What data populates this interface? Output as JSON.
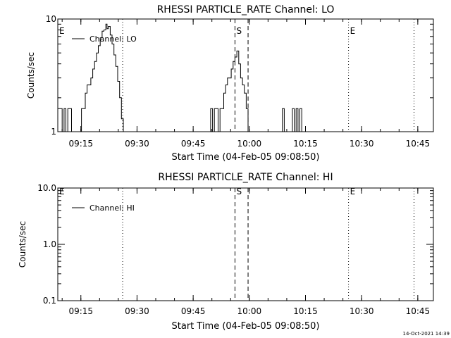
{
  "timestamp": "14-Oct-2021 14:39",
  "chart_data": [
    {
      "type": "line",
      "title": "RHESSI PARTICLE_RATE Channel: LO",
      "xlabel": "Start Time (04-Feb-05 09:08:50)",
      "ylabel": "Counts/sec",
      "yscale": "log",
      "xlim": [
        "09:08:50",
        "10:49:10"
      ],
      "ylim": [
        1,
        10
      ],
      "x_ticks": [
        "09:15",
        "09:30",
        "09:45",
        "10:00",
        "10:15",
        "10:30",
        "10:45"
      ],
      "y_ticks": [
        "1",
        "10"
      ],
      "legend": {
        "label": "Channel: LO",
        "placement": "top-left"
      },
      "markers": [
        {
          "label": "E",
          "time": "09:08:50",
          "style": "none"
        },
        {
          "label": "",
          "time": "09:26:10",
          "style": "dotted"
        },
        {
          "label": "S",
          "time": "09:56:10",
          "style": "dashed"
        },
        {
          "label": "",
          "time": "09:59:40",
          "style": "dashed"
        },
        {
          "label": "E",
          "time": "10:26:30",
          "style": "dotted"
        },
        {
          "label": "",
          "time": "10:44:00",
          "style": "dotted"
        }
      ],
      "series": [
        {
          "values": [
            [
              "09:08:50",
              1.6
            ],
            [
              "09:09:30",
              1.6
            ],
            [
              "09:10:00",
              1.0
            ],
            [
              "09:10:30",
              1.6
            ],
            [
              "09:11:00",
              1.0
            ],
            [
              "09:11:30",
              1.6
            ],
            [
              "09:12:00",
              1.6
            ],
            [
              "09:12:30",
              1.0
            ],
            [
              "09:14:40",
              1.0
            ],
            [
              "09:15:10",
              1.6
            ],
            [
              "09:15:40",
              1.6
            ],
            [
              "09:16:10",
              2.2
            ],
            [
              "09:16:40",
              2.6
            ],
            [
              "09:17:10",
              2.6
            ],
            [
              "09:17:40",
              3.0
            ],
            [
              "09:18:10",
              3.6
            ],
            [
              "09:18:40",
              4.2
            ],
            [
              "09:19:10",
              5.0
            ],
            [
              "09:19:40",
              5.8
            ],
            [
              "09:20:10",
              6.8
            ],
            [
              "09:20:40",
              7.8
            ],
            [
              "09:21:10",
              8.0
            ],
            [
              "09:21:40",
              9.0
            ],
            [
              "09:22:00",
              8.2
            ],
            [
              "09:22:20",
              8.6
            ],
            [
              "09:22:50",
              7.2
            ],
            [
              "09:23:20",
              6.0
            ],
            [
              "09:23:50",
              4.8
            ],
            [
              "09:24:20",
              3.8
            ],
            [
              "09:24:50",
              2.8
            ],
            [
              "09:25:20",
              2.0
            ],
            [
              "09:25:50",
              1.3
            ],
            [
              "09:26:20",
              1.0
            ],
            [
              "09:49:10",
              1.0
            ],
            [
              "09:49:40",
              1.6
            ],
            [
              "09:50:10",
              1.0
            ],
            [
              "09:50:40",
              1.6
            ],
            [
              "09:51:10",
              1.6
            ],
            [
              "09:51:40",
              1.0
            ],
            [
              "09:52:10",
              1.6
            ],
            [
              "09:52:40",
              1.6
            ],
            [
              "09:53:10",
              2.2
            ],
            [
              "09:53:40",
              2.6
            ],
            [
              "09:54:10",
              3.0
            ],
            [
              "09:54:40",
              3.0
            ],
            [
              "09:55:10",
              3.6
            ],
            [
              "09:55:40",
              4.2
            ],
            [
              "09:56:10",
              4.6
            ],
            [
              "09:56:40",
              5.2
            ],
            [
              "09:57:10",
              4.0
            ],
            [
              "09:57:40",
              3.0
            ],
            [
              "09:58:10",
              2.6
            ],
            [
              "09:58:40",
              2.2
            ],
            [
              "09:59:10",
              1.6
            ],
            [
              "09:59:40",
              1.0
            ],
            [
              "10:08:20",
              1.0
            ],
            [
              "10:08:50",
              1.6
            ],
            [
              "10:09:20",
              1.0
            ],
            [
              "10:11:00",
              1.0
            ],
            [
              "10:11:30",
              1.6
            ],
            [
              "10:12:00",
              1.0
            ],
            [
              "10:12:30",
              1.6
            ],
            [
              "10:13:00",
              1.0
            ],
            [
              "10:13:30",
              1.6
            ],
            [
              "10:14:00",
              1.0
            ]
          ]
        }
      ]
    },
    {
      "type": "line",
      "title": "RHESSI PARTICLE_RATE Channel: HI",
      "xlabel": "Start Time (04-Feb-05 09:08:50)",
      "ylabel": "Counts/sec",
      "yscale": "log",
      "xlim": [
        "09:08:50",
        "10:49:10"
      ],
      "ylim": [
        0.1,
        10
      ],
      "x_ticks": [
        "09:15",
        "09:30",
        "09:45",
        "10:00",
        "10:15",
        "10:30",
        "10:45"
      ],
      "y_ticks": [
        "0.1",
        "1.0",
        "10.0"
      ],
      "legend": {
        "label": "Channel: HI",
        "placement": "top-left"
      },
      "markers": [
        {
          "label": "E",
          "time": "09:08:50",
          "style": "none"
        },
        {
          "label": "",
          "time": "09:26:10",
          "style": "dotted"
        },
        {
          "label": "S",
          "time": "09:56:10",
          "style": "dashed"
        },
        {
          "label": "",
          "time": "09:59:40",
          "style": "dashed"
        },
        {
          "label": "E",
          "time": "10:26:30",
          "style": "dotted"
        },
        {
          "label": "",
          "time": "10:44:00",
          "style": "dotted"
        }
      ],
      "series": [
        {
          "values": []
        }
      ]
    }
  ]
}
